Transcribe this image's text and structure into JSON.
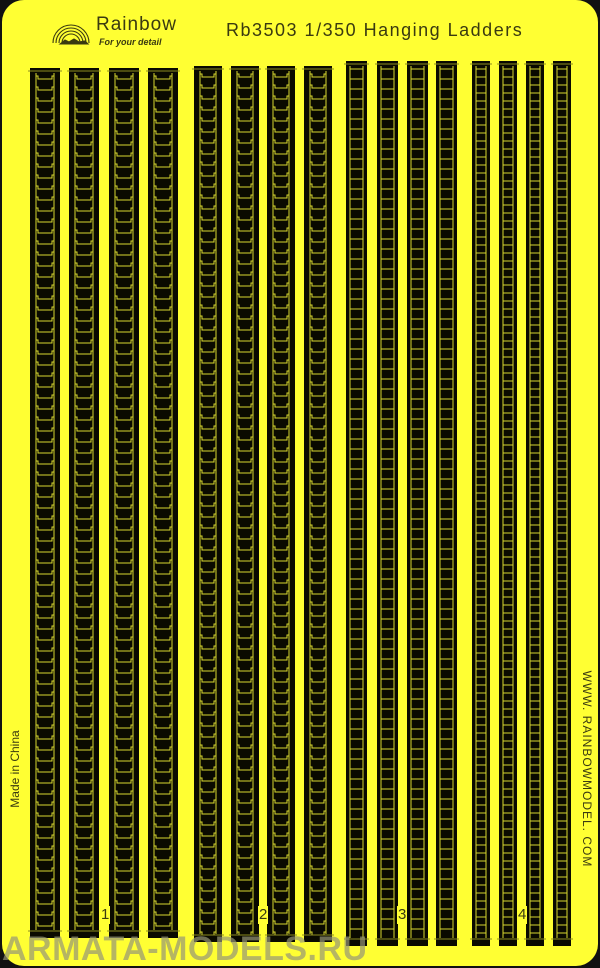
{
  "header": {
    "brand": "Rainbow",
    "tagline": "For your detail",
    "title": "Rb3503   1/350 Hanging Ladders"
  },
  "side_text": {
    "left": "Made in China",
    "right": "WWW. RAINBOWMODEL. COM"
  },
  "groups": [
    {
      "label": "1",
      "style": "bracket-rung",
      "count": 4
    },
    {
      "label": "2",
      "style": "bracket-rung",
      "count": 4
    },
    {
      "label": "3",
      "style": "straight-rung",
      "count": 4
    },
    {
      "label": "4",
      "style": "straight-rung",
      "count": 4
    }
  ],
  "watermark": "ARMATA-MODELS.RU",
  "colors": {
    "fret": "#ffff33",
    "ladder": "#0a0a00",
    "etch": "#d8d830",
    "border": "#111111"
  }
}
